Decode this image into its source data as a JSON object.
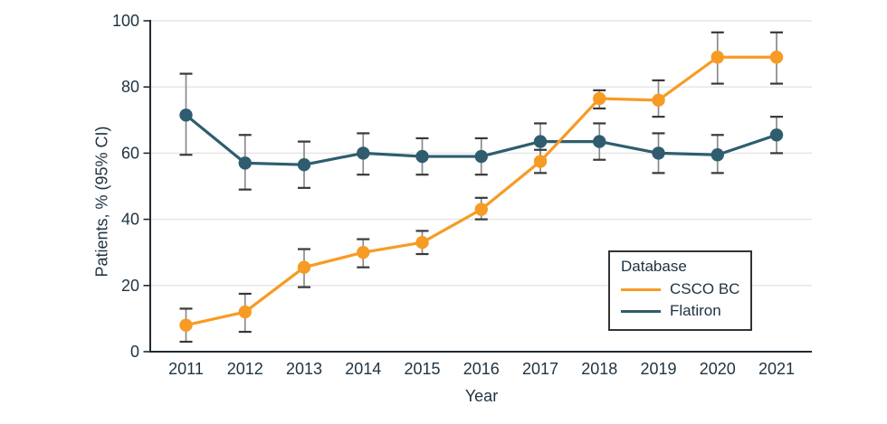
{
  "figure": {
    "background": "#FFFFFF"
  },
  "colors": {
    "grid": "#E5E5E5",
    "axis": "#1F2B33",
    "text": "#213442",
    "error_bar_line": "#8A8A8A",
    "error_bar_cap": "#383838",
    "legend_border": "#333333",
    "csco_orange": "#F79B24",
    "flatiron_teal": "#2F5D6F"
  },
  "chart_data": {
    "type": "line",
    "title": "",
    "xlabel": "Year",
    "ylabel": "Patients, % (95% CI)",
    "x": [
      2011,
      2012,
      2013,
      2014,
      2015,
      2016,
      2017,
      2018,
      2019,
      2020,
      2021
    ],
    "ylim": [
      0,
      100
    ],
    "yticks": [
      0,
      20,
      40,
      60,
      80,
      100
    ],
    "grid": "horizontal-light-gray",
    "error_bars": "95% CI whiskers with caps",
    "legend": {
      "title": "Database",
      "position": "lower-right-inside"
    },
    "series": [
      {
        "name": "CSCO BC",
        "color": "#F79B24",
        "values": [
          8,
          12,
          25.5,
          30,
          33,
          43,
          57.5,
          76.5,
          76,
          89,
          89
        ],
        "ci_low": [
          3,
          6,
          19.5,
          25.5,
          29.5,
          40,
          54,
          73.5,
          71,
          81,
          81
        ],
        "ci_high": [
          13,
          17.5,
          31,
          34,
          36.5,
          46.5,
          61,
          79,
          82,
          96.5,
          96.5
        ]
      },
      {
        "name": "Flatiron",
        "color": "#2F5D6F",
        "values": [
          71.5,
          57,
          56.5,
          60,
          59,
          59,
          63.5,
          63.5,
          60,
          59.5,
          65.5
        ],
        "ci_low": [
          59.5,
          49,
          49.5,
          53.5,
          53.5,
          53.5,
          58,
          58,
          54,
          54,
          60
        ],
        "ci_high": [
          84,
          65.5,
          63.5,
          66,
          64.5,
          64.5,
          69,
          69,
          66,
          65.5,
          71
        ]
      }
    ]
  }
}
